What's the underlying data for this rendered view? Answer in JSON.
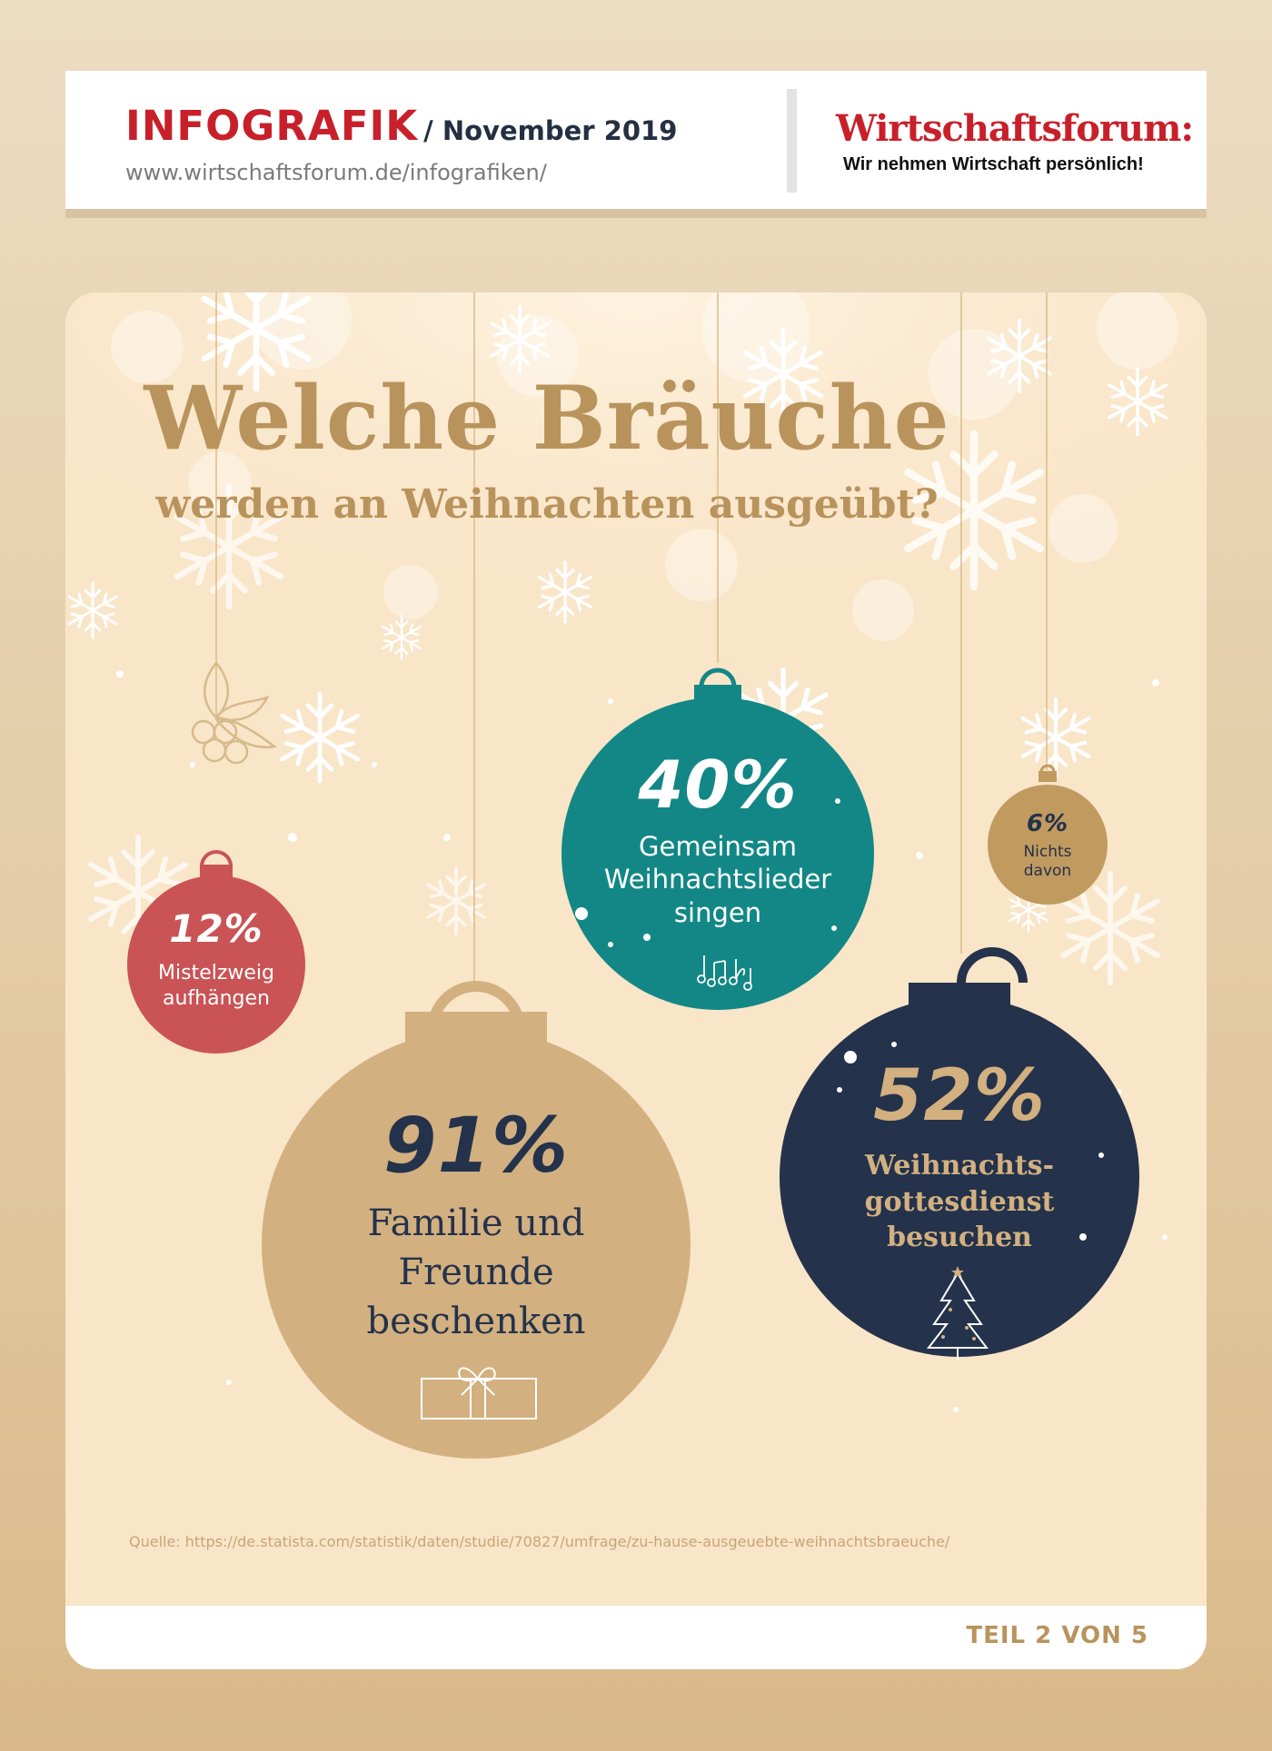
{
  "header": {
    "title": "INFOGRAFIK",
    "date": "/ November 2019",
    "url": "www.wirtschaftsforum.de/infografiken/",
    "brand_name": "Wirtschaftsforum:",
    "brand_slogan": "Wir nehmen Wirtschaft persönlich!"
  },
  "headline": {
    "main": "Welche Bräuche",
    "sub": "werden an Weihnachten ausgeübt?"
  },
  "chart_data": {
    "type": "table",
    "items": [
      {
        "value": "91%",
        "label": "Familie und Freunde beschenken",
        "color": "#d2b080"
      },
      {
        "value": "52%",
        "label": "Weihnachtsgottesdienst besuchen",
        "color": "#24324b"
      },
      {
        "value": "40%",
        "label": "Gemeinsam Weihnachtslieder singen",
        "color": "#128786"
      },
      {
        "value": "12%",
        "label": "Mistelzweig aufhängen",
        "color": "#c95355"
      },
      {
        "value": "6%",
        "label": "Nichts davon",
        "color": "#c09a5f"
      }
    ]
  },
  "ornaments": {
    "mistel": {
      "pct": "12%",
      "line1": "Mistelzweig",
      "line2": "aufhängen",
      "icon": "mistletoe-icon"
    },
    "familie": {
      "pct": "91%",
      "line1": "Familie und",
      "line2": "Freunde",
      "line3": "beschenken",
      "icon": "gift-icon"
    },
    "lieder": {
      "pct": "40%",
      "line1": "Gemeinsam",
      "line2": "Weihnachtslieder",
      "line3": "singen",
      "icon": "music-notes-icon"
    },
    "gottesdienst": {
      "pct": "52%",
      "line1": "Weihnachts-",
      "line2": "gottesdienst",
      "line3": "besuchen",
      "icon": "christmas-tree-icon"
    },
    "nichts": {
      "pct": "6%",
      "line1": "Nichts",
      "line2": "davon"
    }
  },
  "colors": {
    "brand_red": "#c8202a",
    "navy": "#24324b",
    "teal": "#128786",
    "gold": "#b9935c",
    "sand": "#d2b080",
    "rose": "#c95355",
    "card_bg": "#f9e5c8"
  },
  "source": "Quelle: https://de.statista.com/statistik/daten/studie/70827/umfrage/zu-hause-ausgeuebte-weihnachtsbraeuche/",
  "footer": {
    "part": "TEIL 2 VON 5"
  }
}
